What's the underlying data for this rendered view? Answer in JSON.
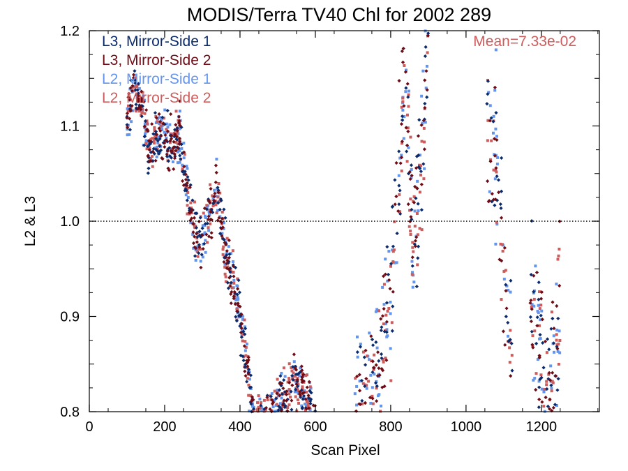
{
  "chart_data": {
    "type": "scatter",
    "title": "MODIS/Terra TV40 Chl for 2002 289",
    "xlabel": "Scan Pixel",
    "ylabel": "L2 & L3",
    "xlim": [
      0,
      1354
    ],
    "ylim": [
      0.8,
      1.2
    ],
    "x_ticks": [
      "0",
      "200",
      "400",
      "600",
      "800",
      "1000",
      "1200"
    ],
    "y_ticks": [
      "0.8",
      "0.9",
      "1.0",
      "1.1",
      "1.2"
    ],
    "reference_line": 1.0,
    "annotation": "Mean=7.33e-02",
    "legend_position": "top-left",
    "series": [
      {
        "name": "L3, Mirror-Side 1",
        "color": "#0a2a6b",
        "marker": "diamond"
      },
      {
        "name": "L3, Mirror-Side 2",
        "color": "#6e0b14",
        "marker": "diamond"
      },
      {
        "name": "L2, Mirror-Side 1",
        "color": "#6495ed",
        "marker": "square"
      },
      {
        "name": "L2, Mirror-Side 2",
        "color": "#cd5c5c",
        "marker": "square"
      }
    ],
    "trend_points": [
      [
        100,
        1.11
      ],
      [
        120,
        1.14
      ],
      [
        140,
        1.12
      ],
      [
        160,
        1.07
      ],
      [
        180,
        1.09
      ],
      [
        200,
        1.09
      ],
      [
        220,
        1.08
      ],
      [
        240,
        1.09
      ],
      [
        260,
        1.03
      ],
      [
        280,
        0.99
      ],
      [
        300,
        0.98
      ],
      [
        320,
        1.01
      ],
      [
        340,
        1.03
      ],
      [
        360,
        0.97
      ],
      [
        380,
        0.94
      ],
      [
        400,
        0.9
      ],
      [
        420,
        0.84
      ],
      [
        440,
        0.78
      ],
      [
        480,
        0.79
      ],
      [
        500,
        0.81
      ],
      [
        520,
        0.82
      ],
      [
        540,
        0.83
      ],
      [
        560,
        0.83
      ],
      [
        580,
        0.81
      ],
      [
        600,
        0.79
      ],
      [
        720,
        0.8
      ],
      [
        760,
        0.83
      ],
      [
        800,
        0.92
      ],
      [
        820,
        1.05
      ],
      [
        840,
        1.12
      ],
      [
        860,
        0.98
      ],
      [
        880,
        1.05
      ],
      [
        900,
        1.2
      ],
      [
        1060,
        1.1
      ],
      [
        1080,
        1.08
      ],
      [
        1100,
        0.95
      ],
      [
        1120,
        0.85
      ],
      [
        1180,
        0.92
      ],
      [
        1200,
        0.85
      ],
      [
        1220,
        0.82
      ],
      [
        1240,
        0.88
      ],
      [
        1250,
        0.9
      ]
    ]
  }
}
